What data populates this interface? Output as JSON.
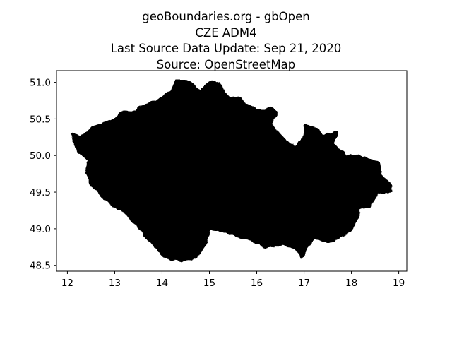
{
  "titles": {
    "line1": "geoBoundaries.org - gbOpen",
    "line2": "CZE ADM4",
    "line3": "Last Source Data Update: Sep 21, 2020",
    "line4": "Source: OpenStreetMap"
  },
  "chart_data": {
    "type": "map",
    "title": "geoBoundaries.org - gbOpen\nCZE ADM4\nLast Source Data Update: Sep 21, 2020\nSource: OpenStreetMap",
    "xlabel": "",
    "ylabel": "",
    "xlim": [
      11.77,
      19.17
    ],
    "ylim": [
      48.42,
      51.16
    ],
    "xticks": [
      12,
      13,
      14,
      15,
      16,
      17,
      18,
      19
    ],
    "yticks": [
      48.5,
      49.0,
      49.5,
      50.0,
      50.5,
      51.0
    ],
    "xtick_labels": [
      "12",
      "13",
      "14",
      "15",
      "16",
      "17",
      "18",
      "19"
    ],
    "ytick_labels": [
      "48.5",
      "49.0",
      "49.5",
      "50.0",
      "50.5",
      "51.0"
    ],
    "fill_color": "#000000",
    "grid": false,
    "outline": [
      [
        12.09,
        50.3
      ],
      [
        12.28,
        50.25
      ],
      [
        12.4,
        50.31
      ],
      [
        12.55,
        50.39
      ],
      [
        12.8,
        50.45
      ],
      [
        13.02,
        50.51
      ],
      [
        13.2,
        50.6
      ],
      [
        13.46,
        50.59
      ],
      [
        13.62,
        50.69
      ],
      [
        13.87,
        50.73
      ],
      [
        14.05,
        50.82
      ],
      [
        14.22,
        50.9
      ],
      [
        14.3,
        51.03
      ],
      [
        14.5,
        51.03
      ],
      [
        14.59,
        51.0
      ],
      [
        14.82,
        50.87
      ],
      [
        15.0,
        51.02
      ],
      [
        15.2,
        50.99
      ],
      [
        15.4,
        50.79
      ],
      [
        15.6,
        50.77
      ],
      [
        15.8,
        50.71
      ],
      [
        15.98,
        50.62
      ],
      [
        16.18,
        50.62
      ],
      [
        16.33,
        50.65
      ],
      [
        16.42,
        50.58
      ],
      [
        16.3,
        50.44
      ],
      [
        16.45,
        50.31
      ],
      [
        16.6,
        50.21
      ],
      [
        16.8,
        50.1
      ],
      [
        16.99,
        50.25
      ],
      [
        17.02,
        50.42
      ],
      [
        17.26,
        50.36
      ],
      [
        17.4,
        50.27
      ],
      [
        17.7,
        50.32
      ],
      [
        17.61,
        50.17
      ],
      [
        17.87,
        49.99
      ],
      [
        18.1,
        50.0
      ],
      [
        18.35,
        49.95
      ],
      [
        18.57,
        49.91
      ],
      [
        18.6,
        49.75
      ],
      [
        18.82,
        49.59
      ],
      [
        18.84,
        49.51
      ],
      [
        18.55,
        49.49
      ],
      [
        18.4,
        49.32
      ],
      [
        18.18,
        49.27
      ],
      [
        18.05,
        49.03
      ],
      [
        17.88,
        48.93
      ],
      [
        17.52,
        48.82
      ],
      [
        17.2,
        48.88
      ],
      [
        16.95,
        48.62
      ],
      [
        16.82,
        48.73
      ],
      [
        16.55,
        48.8
      ],
      [
        16.2,
        48.75
      ],
      [
        15.9,
        48.84
      ],
      [
        15.6,
        48.9
      ],
      [
        15.25,
        48.98
      ],
      [
        15.0,
        49.0
      ],
      [
        14.9,
        48.78
      ],
      [
        14.7,
        48.6
      ],
      [
        14.4,
        48.56
      ],
      [
        14.1,
        48.6
      ],
      [
        13.83,
        48.77
      ],
      [
        13.6,
        48.95
      ],
      [
        13.38,
        49.1
      ],
      [
        13.18,
        49.24
      ],
      [
        12.93,
        49.34
      ],
      [
        12.7,
        49.45
      ],
      [
        12.52,
        49.6
      ],
      [
        12.4,
        49.75
      ],
      [
        12.45,
        49.92
      ],
      [
        12.22,
        50.08
      ],
      [
        12.12,
        50.2
      ]
    ]
  }
}
